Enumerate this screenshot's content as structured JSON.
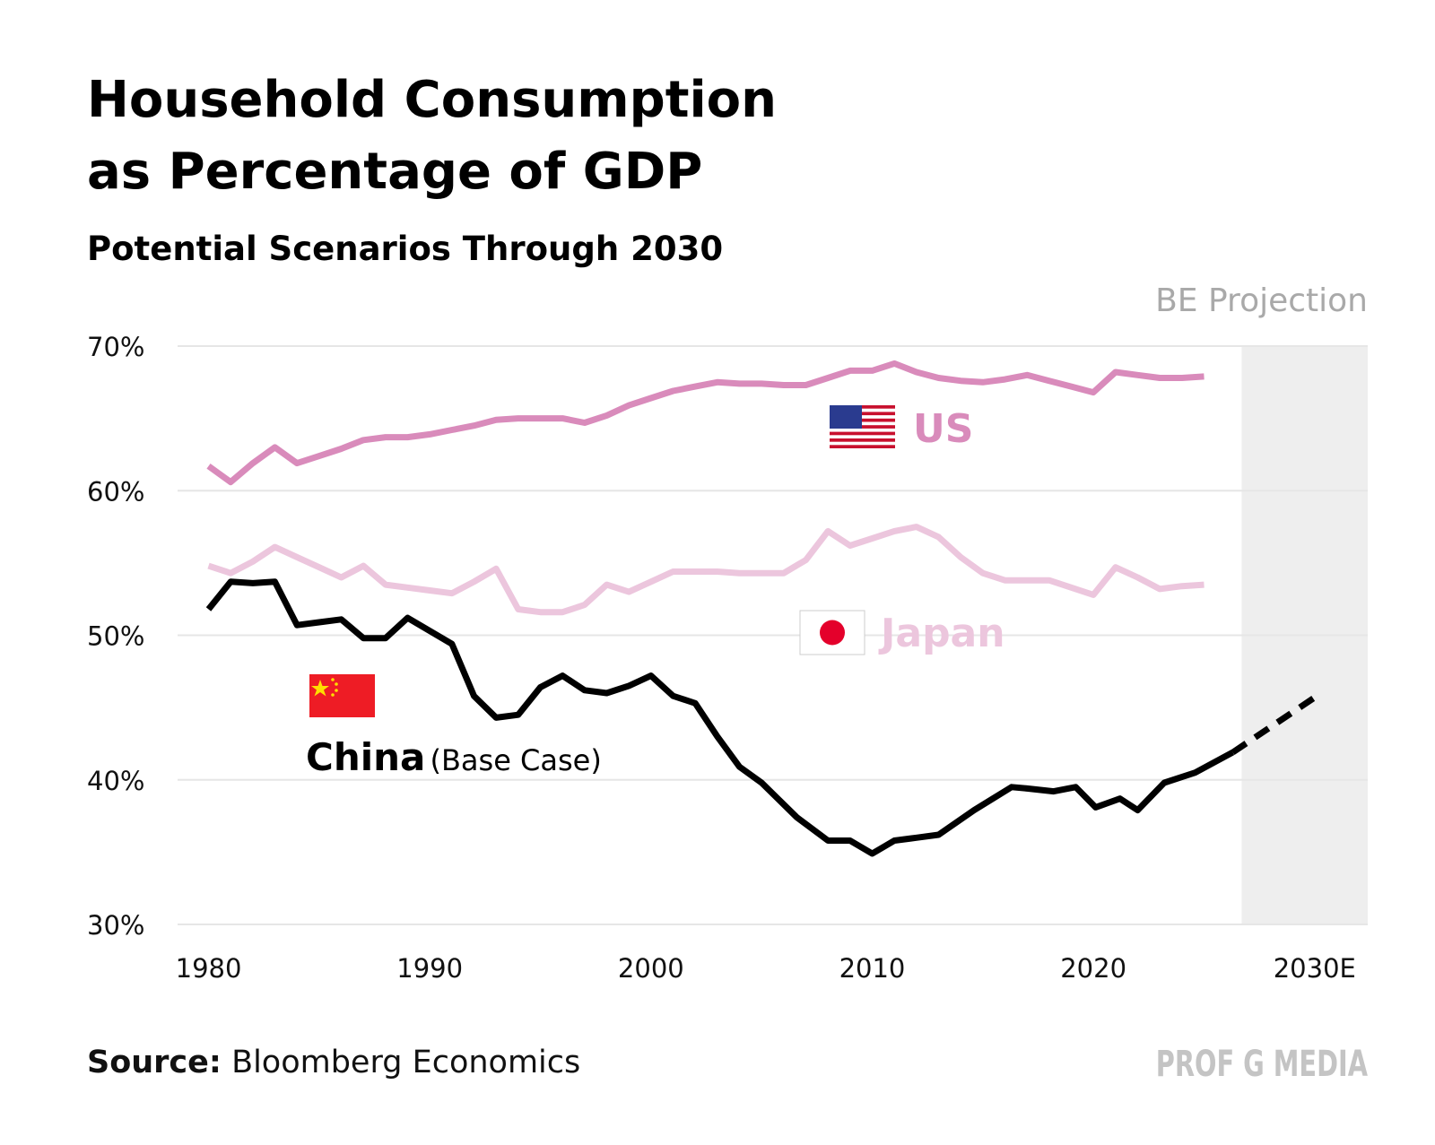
{
  "chart_data": {
    "type": "line",
    "title": [
      "Household Consumption",
      "as Percentage of GDP"
    ],
    "subtitle": "Potential Scenarios Through 2030",
    "projection_label": "BE Projection",
    "projection_start": 2026.7,
    "source_label": "Source:",
    "source": "Bloomberg Economics",
    "brand": "PROF G MEDIA",
    "xlim": [
      1978.6,
      2032.4
    ],
    "xticks": [
      1980,
      1990,
      2000,
      2010,
      2020,
      {
        "value": 2030,
        "label": "2030E"
      }
    ],
    "ylim": [
      30,
      70
    ],
    "yticks": [
      {
        "value": 30,
        "label": "30%"
      },
      {
        "value": 40,
        "label": "40%"
      },
      {
        "value": 50,
        "label": "50%"
      },
      {
        "value": 60,
        "label": "60%"
      },
      {
        "value": 70,
        "label": "70%"
      }
    ],
    "grid": true,
    "series": [
      {
        "name": "US",
        "color": "#d98bbb",
        "x": [
          1980,
          1981,
          1982,
          1983,
          1984,
          1985,
          1986,
          1987,
          1988,
          1989,
          1990,
          1991,
          1992,
          1993,
          1994,
          1995,
          1996,
          1997,
          1998,
          1999,
          2000,
          2001,
          2002,
          2003,
          2004,
          2005,
          2006,
          2007,
          2008,
          2009,
          2010,
          2011,
          2012,
          2013,
          2014,
          2015,
          2016,
          2017,
          2018,
          2019,
          2020,
          2021,
          2022,
          2023,
          2024,
          2025
        ],
        "values": [
          61.7,
          60.6,
          61.9,
          63.0,
          61.9,
          62.4,
          62.9,
          63.5,
          63.7,
          63.7,
          63.9,
          64.2,
          64.5,
          64.9,
          65.0,
          65.0,
          65.0,
          64.7,
          65.2,
          65.9,
          66.4,
          66.9,
          67.2,
          67.5,
          67.4,
          67.4,
          67.3,
          67.3,
          67.8,
          68.3,
          68.3,
          68.8,
          68.2,
          67.8,
          67.6,
          67.5,
          67.7,
          68.0,
          67.6,
          67.2,
          66.8,
          68.2,
          68.0,
          67.8,
          67.8,
          67.9
        ]
      },
      {
        "name": "Japan",
        "color": "#ecc6dd",
        "x": [
          1980,
          1981,
          1982,
          1983,
          1984,
          1985,
          1986,
          1987,
          1988,
          1989,
          1990,
          1991,
          1992,
          1993,
          1994,
          1995,
          1996,
          1997,
          1998,
          1999,
          2000,
          2001,
          2002,
          2003,
          2004,
          2005,
          2006,
          2007,
          2008,
          2009,
          2010,
          2011,
          2012,
          2013,
          2014,
          2015,
          2016,
          2017,
          2018,
          2019,
          2020,
          2021,
          2022,
          2023,
          2024,
          2025
        ],
        "values": [
          54.8,
          54.3,
          55.1,
          56.1,
          55.4,
          54.7,
          54.0,
          54.8,
          53.5,
          53.3,
          53.1,
          52.9,
          53.7,
          54.6,
          51.8,
          51.6,
          51.6,
          52.1,
          53.5,
          53.0,
          53.7,
          54.4,
          54.4,
          54.4,
          54.3,
          54.3,
          54.3,
          55.2,
          57.2,
          56.2,
          56.7,
          57.2,
          57.5,
          56.8,
          55.4,
          54.3,
          53.8,
          53.8,
          53.8,
          53.3,
          52.8,
          54.7,
          54.0,
          53.2,
          53.4,
          53.5
        ]
      },
      {
        "name": "China",
        "note": "(Base Case)",
        "color": "#000000",
        "x": [
          1980,
          1981,
          1982,
          1983,
          1984,
          1985,
          1986,
          1987,
          1988,
          1989,
          1991,
          1992,
          1993,
          1994,
          1995,
          1996,
          1997,
          1998,
          1999,
          2000,
          2001,
          2002,
          2003,
          2004,
          2005,
          2006.6,
          2008,
          2009,
          2010,
          2011,
          2012,
          2013,
          2014.6,
          2016.3,
          2017,
          2018.2,
          2019.2,
          2020.1,
          2021.2,
          2022,
          2023.2,
          2024.6,
          2026.3
        ],
        "values": [
          51.8,
          53.7,
          53.6,
          53.7,
          50.7,
          50.9,
          51.1,
          49.8,
          49.8,
          51.2,
          49.4,
          45.8,
          44.3,
          44.5,
          46.4,
          47.2,
          46.2,
          46.0,
          46.5,
          47.2,
          45.8,
          45.3,
          43.0,
          40.9,
          39.8,
          37.4,
          35.8,
          35.8,
          34.9,
          35.8,
          36.0,
          36.2,
          37.9,
          39.5,
          39.4,
          39.2,
          39.5,
          38.1,
          38.7,
          37.9,
          39.8,
          40.5,
          41.9
        ]
      },
      {
        "color": "#000000",
        "dashed": true,
        "x": [
          2026.3,
          2030.1
        ],
        "values": [
          41.9,
          45.8
        ]
      }
    ]
  }
}
